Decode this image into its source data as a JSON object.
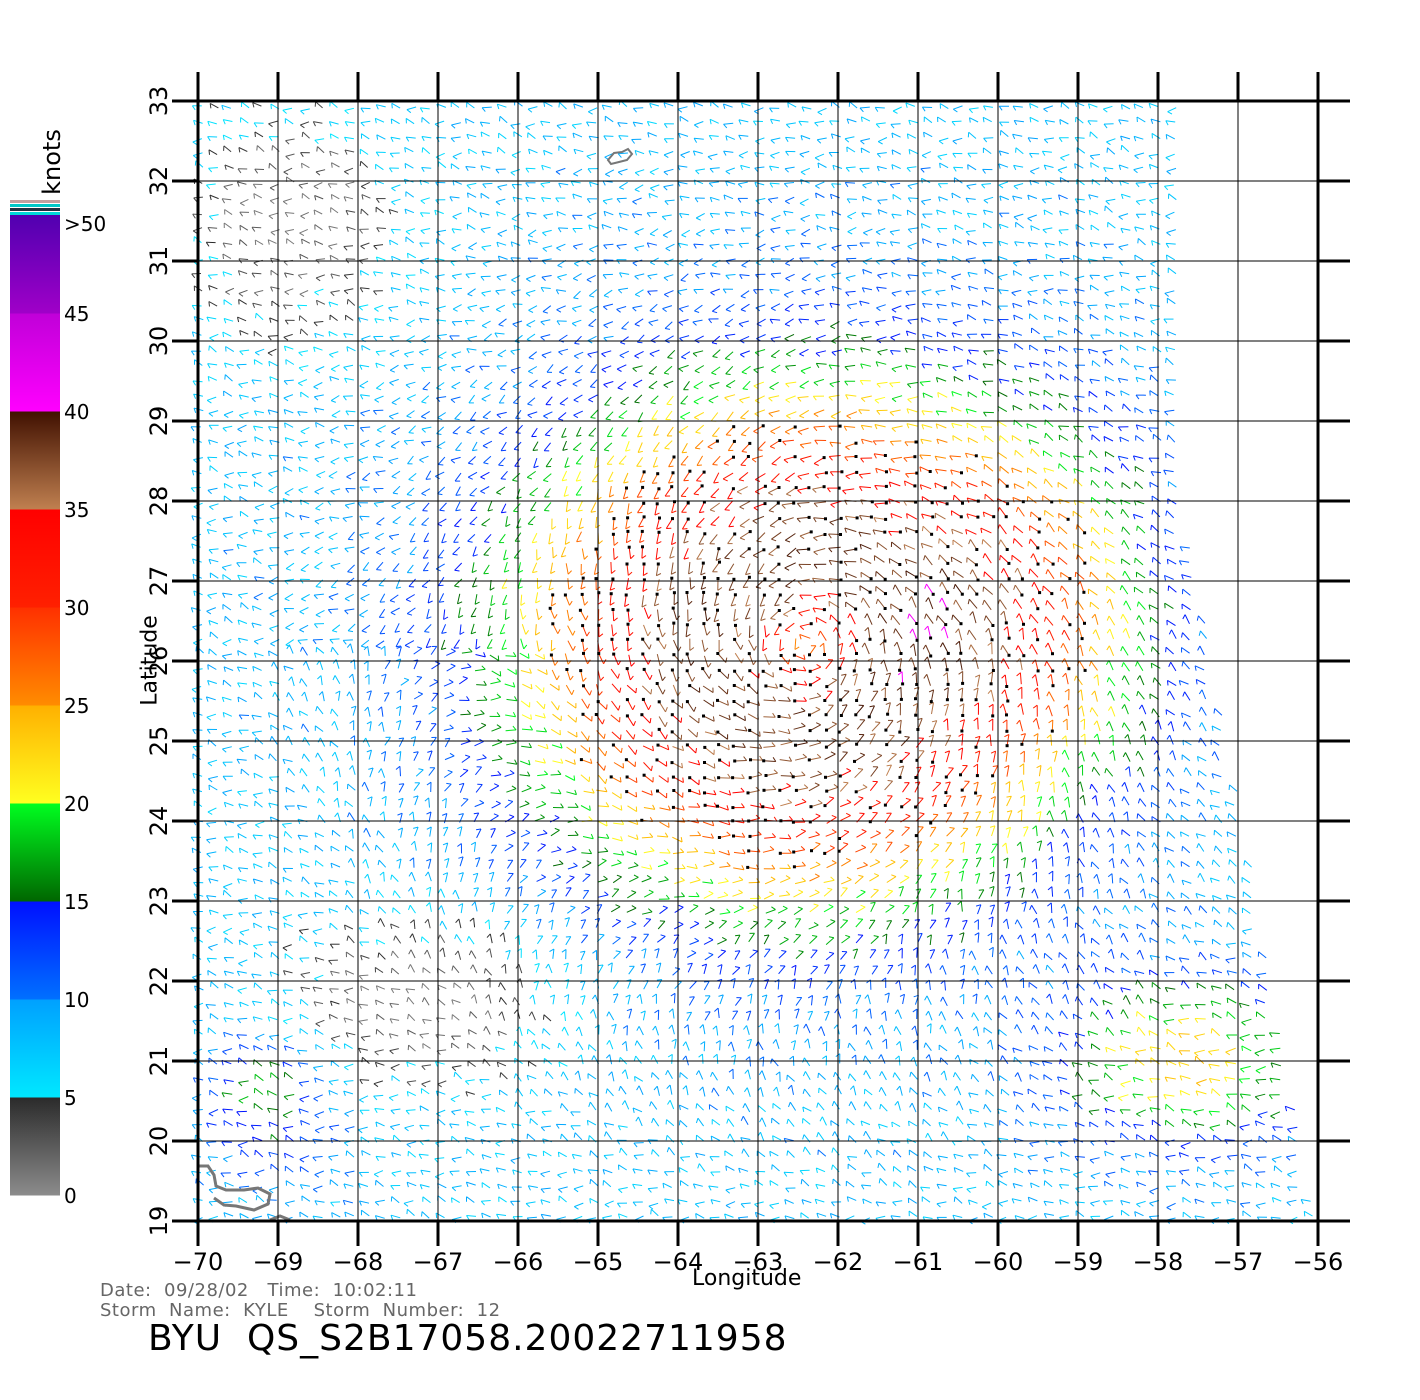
{
  "chart_data": {
    "type": "other",
    "title": "",
    "xlabel": "Longitude",
    "ylabel": "Latitude",
    "xlim": [
      -70,
      -56
    ],
    "ylim": [
      19,
      33
    ],
    "x_ticks": [
      "-70",
      "-69",
      "-68",
      "-67",
      "-66",
      "-65",
      "-64",
      "-63",
      "-62",
      "-61",
      "-60",
      "-59",
      "-58",
      "-57",
      "-56"
    ],
    "y_ticks": [
      "19",
      "20",
      "21",
      "22",
      "23",
      "24",
      "25",
      "26",
      "27",
      "28",
      "29",
      "30",
      "31",
      "32",
      "33"
    ],
    "grid": true,
    "colorbar": {
      "unit": "knots",
      "labels": [
        "0",
        "5",
        "10",
        "15",
        "20",
        "25",
        "30",
        "35",
        "40",
        "45",
        ">50"
      ],
      "bins": [
        {
          "from": 0,
          "to": 5,
          "colors": [
            "#8c8c8c",
            "#2a2a2a"
          ]
        },
        {
          "from": 5,
          "to": 10,
          "colors": [
            "#00e8ff",
            "#00a0ff"
          ]
        },
        {
          "from": 10,
          "to": 15,
          "colors": [
            "#0070ff",
            "#0010ff"
          ]
        },
        {
          "from": 15,
          "to": 20,
          "colors": [
            "#006600",
            "#00ff20"
          ]
        },
        {
          "from": 20,
          "to": 25,
          "colors": [
            "#ffff20",
            "#ffb000"
          ]
        },
        {
          "from": 25,
          "to": 30,
          "colors": [
            "#ff8c00",
            "#ff3000"
          ]
        },
        {
          "from": 30,
          "to": 35,
          "colors": [
            "#ff2000",
            "#ff0000"
          ]
        },
        {
          "from": 35,
          "to": 40,
          "colors": [
            "#c08050",
            "#401000"
          ]
        },
        {
          "from": 40,
          "to": 45,
          "colors": [
            "#ff00ff",
            "#c000d8"
          ]
        },
        {
          "from": 45,
          "to": 50,
          "colors": [
            "#a000c8",
            "#5000b0"
          ]
        }
      ],
      "top_stripes": [
        "#c0a0a0",
        "#00c8c8",
        "#203040",
        "#00d8d8"
      ]
    },
    "storm_center": {
      "lon": -62.4,
      "lat": 26.2
    },
    "swath_edge_lon": [
      [
        33,
        -57.7
      ],
      [
        28,
        -57.7
      ],
      [
        19,
        -56.0
      ]
    ]
  },
  "info": {
    "date_line": "Date:  09/28/02   Time:  10:02:11",
    "storm_line": "Storm  Name:  KYLE    Storm  Number:  12",
    "file_id": "BYU  QS_S2B17058.20022711958"
  }
}
